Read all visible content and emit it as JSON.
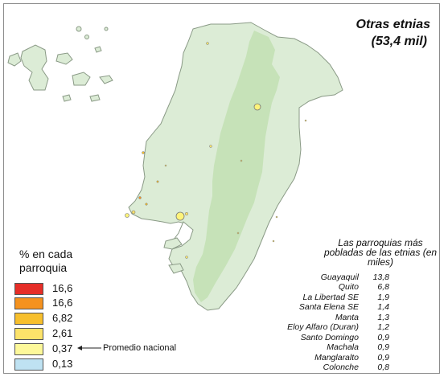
{
  "title": {
    "line1": "Otras etnias",
    "line2": "(53,4 mil)"
  },
  "legend": {
    "title": "% en cada parroquia",
    "items": [
      {
        "value": "16,6",
        "color": "#e62e28"
      },
      {
        "value": "16,6",
        "color": "#f4921f"
      },
      {
        "value": "6,82",
        "color": "#f7bf2c"
      },
      {
        "value": "2,61",
        "color": "#fde36a"
      },
      {
        "value": "0,37",
        "color": "#fdf89a"
      },
      {
        "value": "0,13",
        "color": "#bfe2f2"
      }
    ],
    "note": "Promedio nacional",
    "note_target": "0,37"
  },
  "ranking": {
    "title": "Las parroquias más pobladas de las etnias (en miles)",
    "rows": [
      {
        "name": "Guayaquil",
        "value": "13,8"
      },
      {
        "name": "Quito",
        "value": "6,8"
      },
      {
        "name": "La Libertad SE",
        "value": "1,9"
      },
      {
        "name": "Santa Elena SE",
        "value": "1,4"
      },
      {
        "name": "Manta",
        "value": "1,3"
      },
      {
        "name": "Eloy Alfaro (Duran)",
        "value": "1,2"
      },
      {
        "name": "Santo Domingo",
        "value": "0,9"
      },
      {
        "name": "Machala",
        "value": "0,9"
      },
      {
        "name": "Manglaralto",
        "value": "0,9"
      },
      {
        "name": "Colonche",
        "value": "0,8"
      }
    ]
  },
  "colors": {
    "land": "#dcecd6",
    "sierra": "#c6e2b8",
    "border": "#8a9a86",
    "highlight": "#fdf37a"
  }
}
